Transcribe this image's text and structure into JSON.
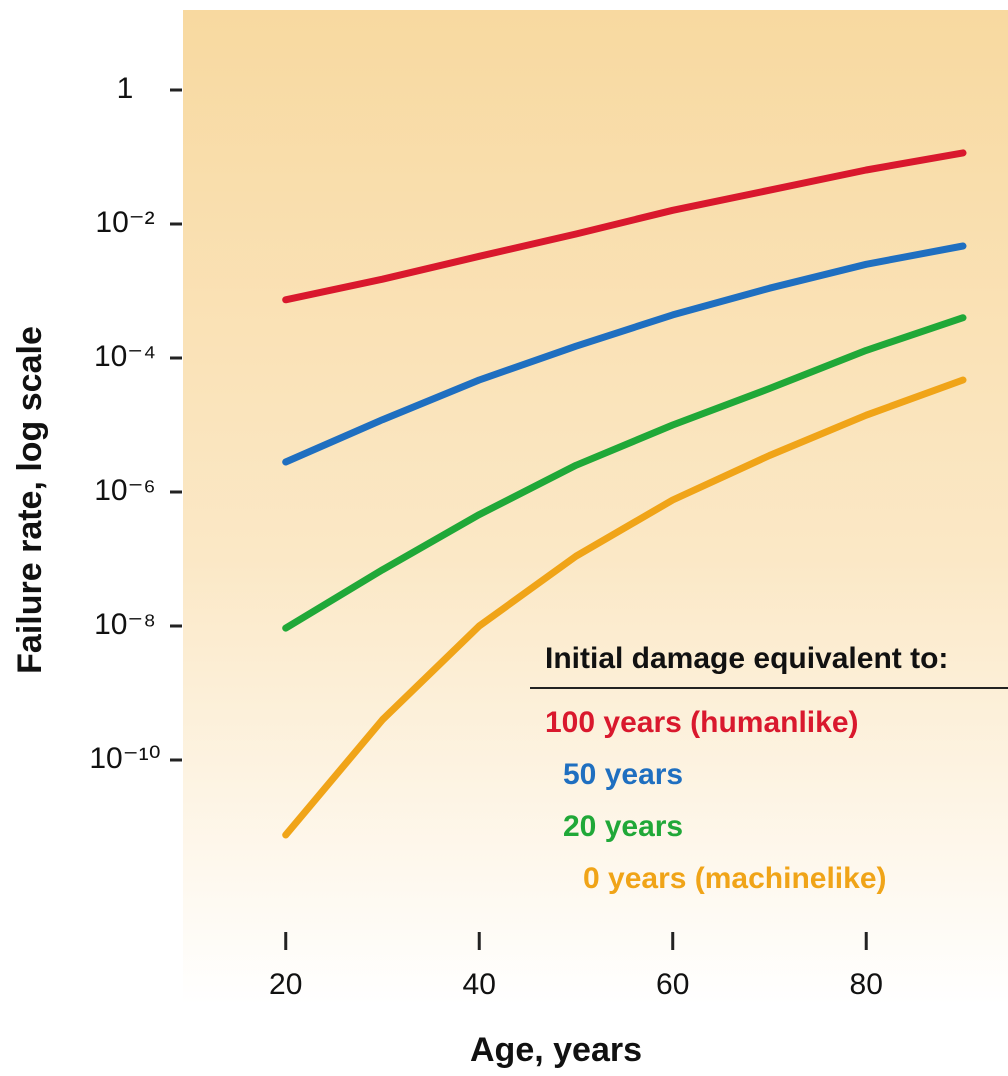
{
  "chart_data": {
    "type": "line",
    "x_label": "Age, years",
    "y_label": "Failure rate, log scale",
    "legend_title": "Initial damage equivalent to:",
    "log_y": true,
    "x": [
      20,
      30,
      40,
      50,
      60,
      70,
      80,
      90
    ],
    "xlim": [
      10,
      93
    ],
    "xticks": [
      20,
      40,
      60,
      80
    ],
    "ylim": [
      1e-13,
      10
    ],
    "yticks": [
      1,
      {
        "value": 0.01,
        "label": "10⁻²"
      },
      {
        "value": 0.0001,
        "label": "10⁻⁴"
      },
      {
        "value": 1e-06,
        "label": "10⁻⁶"
      },
      {
        "value": 1e-08,
        "label": "10⁻⁸"
      },
      {
        "value": 1e-10,
        "label": "10⁻¹⁰"
      }
    ],
    "series": [
      {
        "name": "100 years (humanlike)",
        "color": "#d9182d",
        "values": [
          0.00074,
          0.0015,
          0.0033,
          0.0071,
          0.016,
          0.032,
          0.064,
          0.115
        ]
      },
      {
        "name": "50 years",
        "color": "#1f6fc0",
        "values": [
          2.8e-06,
          1.2e-05,
          4.7e-05,
          0.00015,
          0.00044,
          0.0011,
          0.0025,
          0.0047
        ]
      },
      {
        "name": "20 years",
        "color": "#20a838",
        "values": [
          9.3e-09,
          6.9e-08,
          4.6e-07,
          2.5e-06,
          1e-05,
          3.5e-05,
          0.00013,
          0.0004
        ]
      },
      {
        "name": "0 years (machinelike)",
        "color": "#f0a418",
        "values": [
          7.6e-12,
          4e-10,
          1e-08,
          1.1e-07,
          7.6e-07,
          3.5e-06,
          1.4e-05,
          4.7e-05
        ]
      }
    ]
  }
}
